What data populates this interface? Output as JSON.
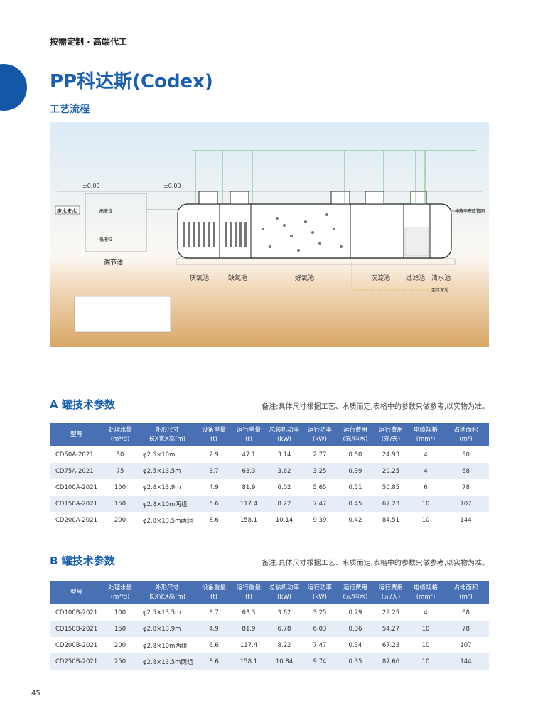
{
  "header": {
    "tagline": "按需定制 · 高端代工",
    "title": "PP科达斯(Codex)",
    "subtitle": "工艺流程"
  },
  "diagram": {
    "level_mark": "±0.00",
    "labels": {
      "inflow": "废水来水",
      "high_level": "高液位",
      "low_level": "低液位",
      "regulating_tank": "调节池",
      "anaerobic": "厌氧池",
      "anoxic": "缺氧池",
      "aerobic": "好氧池",
      "sedimentation": "沉淀池",
      "filter": "过滤池",
      "clear_water": "清水池",
      "discharge": "排放至市政管网",
      "sludge": "至污泥池"
    },
    "colors": {
      "sky": "#dcebf6",
      "ground": "#d8a766",
      "pipe_green": "#3aa640",
      "pipe_red": "#d0505a"
    }
  },
  "table_a": {
    "title": "A 罐技术参数",
    "note": "备注:具体尺寸根据工艺、水质而定,表格中的参数只做参考,以实物为准。",
    "headers": [
      [
        "型号",
        ""
      ],
      [
        "处理水量",
        "(m³/d)"
      ],
      [
        "外形尺寸",
        "长X宽X高(m)"
      ],
      [
        "设备重量",
        "(t)"
      ],
      [
        "运行重量",
        "(t)"
      ],
      [
        "总装机功率",
        "(kW)"
      ],
      [
        "运行功率",
        "(kW)"
      ],
      [
        "运行费用",
        "(元/吨水)"
      ],
      [
        "运行费用",
        "(元/天)"
      ],
      [
        "电缆规格",
        "(mm²)"
      ],
      [
        "占地面积",
        "(m²)"
      ]
    ],
    "rows": [
      [
        "CD50A-2021",
        "50",
        "φ2.5×10m",
        "2.9",
        "47.1",
        "3.14",
        "2.77",
        "0.50",
        "24.93",
        "4",
        "50"
      ],
      [
        "CD75A-2021",
        "75",
        "φ2.5×13.5m",
        "3.7",
        "63.3",
        "3.62",
        "3.25",
        "0.39",
        "29.25",
        "4",
        "68"
      ],
      [
        "CD100A-2021",
        "100",
        "φ2.8×13.9m",
        "4.9",
        "81.9",
        "6.02",
        "5.65",
        "0.51",
        "50.85",
        "6",
        "78"
      ],
      [
        "CD150A-2021",
        "150",
        "φ2.8×10m两组",
        "6.6",
        "117.4",
        "8.22",
        "7.47",
        "0.45",
        "67.23",
        "10",
        "107"
      ],
      [
        "CD200A-2021",
        "200",
        "φ2.8×13.5m两组",
        "8.6",
        "158.1",
        "10.14",
        "9.39",
        "0.42",
        "84.51",
        "10",
        "144"
      ]
    ]
  },
  "table_b": {
    "title": "B 罐技术参数",
    "note": "备注:具体尺寸根据工艺、水质而定,表格中的参数只做参考,以实物为准。",
    "headers": [
      [
        "型号",
        ""
      ],
      [
        "处理水量",
        "(m³/d)"
      ],
      [
        "外形尺寸",
        "长X宽X高(m)"
      ],
      [
        "设备重量",
        "(t)"
      ],
      [
        "运行重量",
        "(t)"
      ],
      [
        "总装机功率",
        "(kW)"
      ],
      [
        "运行功率",
        "(kW)"
      ],
      [
        "运行费用",
        "(元/吨水)"
      ],
      [
        "运行费用",
        "(元/天)"
      ],
      [
        "电缆规格",
        "(mm²)"
      ],
      [
        "占地面积",
        "(m²)"
      ]
    ],
    "rows": [
      [
        "CD100B-2021",
        "100",
        "φ2.5×13.5m",
        "3.7",
        "63.3",
        "3.62",
        "3.25",
        "0.29",
        "29.25",
        "4",
        "68"
      ],
      [
        "CD150B-2021",
        "150",
        "φ2.8×13.9m",
        "4.9",
        "81.9",
        "6.78",
        "6.03",
        "0.36",
        "54.27",
        "10",
        "78"
      ],
      [
        "CD200B-2021",
        "200",
        "φ2.8×10m两组",
        "6.6",
        "117.4",
        "8.22",
        "7.47",
        "0.34",
        "67.23",
        "10",
        "107"
      ],
      [
        "CD250B-2021",
        "250",
        "φ2.8×13.5m两组",
        "8.6",
        "158.1",
        "10.84",
        "9.74",
        "0.35",
        "87.66",
        "10",
        "144"
      ]
    ]
  },
  "footer": {
    "page_number": "45"
  }
}
